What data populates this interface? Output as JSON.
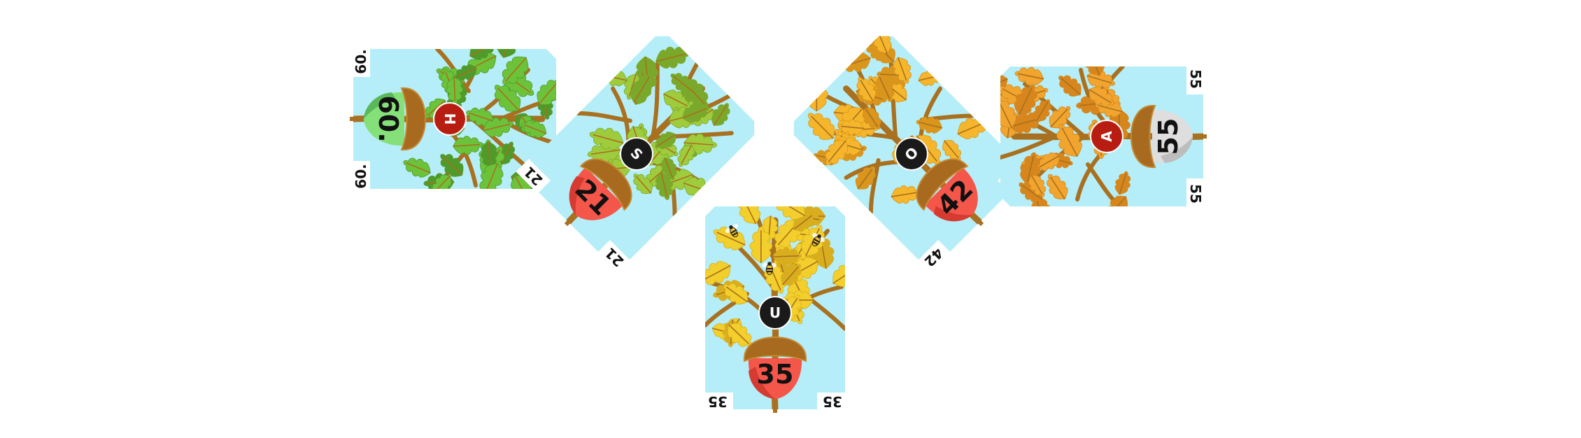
{
  "cards": [
    {
      "id": "card-h",
      "value": "60.",
      "corner_value": "60.",
      "letter": "H",
      "acorn_color": "#86e07a",
      "acorn_shade": "#5ab85a",
      "badge_color": "#b81d12",
      "leaf_color": "#6cc33a",
      "leaf_dark": "#4f9a2a",
      "bees": 0
    },
    {
      "id": "card-s",
      "value": "21",
      "corner_value": "21",
      "letter": "S",
      "acorn_color": "#f4564a",
      "acorn_shade": "#d63b32",
      "badge_color": "#1a1a1a",
      "leaf_color": "#9fcc3c",
      "leaf_dark": "#7aa82a",
      "bees": 0
    },
    {
      "id": "card-u",
      "value": "35",
      "corner_value": "35",
      "letter": "U",
      "acorn_color": "#f4564a",
      "acorn_shade": "#d63b32",
      "badge_color": "#1a1a1a",
      "leaf_color": "#f2cf2c",
      "leaf_dark": "#d9ae1e",
      "bees": 3
    },
    {
      "id": "card-o",
      "value": "42",
      "corner_value": "42",
      "letter": "O",
      "acorn_color": "#f4564a",
      "acorn_shade": "#d63b32",
      "badge_color": "#1a1a1a",
      "leaf_color": "#f5b62c",
      "leaf_dark": "#d9951c",
      "bees": 0
    },
    {
      "id": "card-a",
      "value": "55",
      "corner_value": "55",
      "letter": "A",
      "acorn_color": "#dedede",
      "acorn_shade": "#bdbdbd",
      "badge_color": "#b81d12",
      "leaf_color": "#f2a52e",
      "leaf_dark": "#d6861c",
      "bees": 0
    }
  ],
  "colors": {
    "sky": "#b5eef8",
    "branch": "#a8701f",
    "cap": "#a86a1e",
    "cap_light": "#c58a34"
  }
}
